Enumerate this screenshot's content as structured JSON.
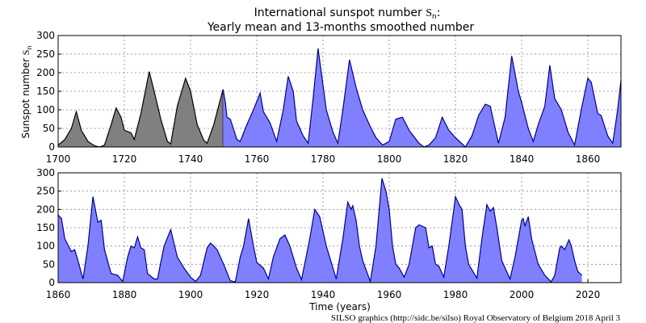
{
  "chart_data": {
    "type": "area",
    "title_line1": "International sunspot number",
    "title_symbol": "S",
    "title_subscript": "n",
    "title_suffix": ":",
    "title_line2": "Yearly mean and 13-months smoothed number",
    "ylabel": "Sunspot number",
    "ylabel_symbol": "S",
    "ylabel_subscript": "n",
    "xlabel": "Time (years)",
    "credit": "SILSO graphics (http://sidc.be/silso)  Royal Observatory of Belgium  2018 April 3",
    "grid": true,
    "colors": {
      "yearly_fill": "#808080",
      "smoothed_fill": "#8080ff",
      "smoothed_line": "#00008b",
      "yearly_line": "#000000"
    },
    "panels": [
      {
        "xlim": [
          1700,
          1870
        ],
        "ylim": [
          0,
          300
        ],
        "xticks": [
          "1700",
          "1720",
          "1740",
          "1760",
          "1780",
          "1800",
          "1820",
          "1840",
          "1860"
        ],
        "yticks": [
          "0",
          "50",
          "100",
          "150",
          "200",
          "250",
          "300"
        ],
        "series": [
          {
            "kind": "yearly",
            "points": [
              [
                1700,
                5
              ],
              [
                1702,
                20
              ],
              [
                1704,
                50
              ],
              [
                1705.5,
                95
              ],
              [
                1707,
                45
              ],
              [
                1709,
                15
              ],
              [
                1711,
                3
              ],
              [
                1712.5,
                0
              ],
              [
                1714,
                5
              ],
              [
                1716,
                60
              ],
              [
                1717.5,
                105
              ],
              [
                1719,
                80
              ],
              [
                1720,
                45
              ],
              [
                1722,
                38
              ],
              [
                1723,
                20
              ],
              [
                1725,
                90
              ],
              [
                1727.5,
                203
              ],
              [
                1729,
                150
              ],
              [
                1731,
                75
              ],
              [
                1733,
                15
              ],
              [
                1734,
                8
              ],
              [
                1736,
                110
              ],
              [
                1738.5,
                185
              ],
              [
                1740,
                150
              ],
              [
                1742,
                60
              ],
              [
                1744,
                18
              ],
              [
                1745,
                10
              ],
              [
                1747,
                60
              ],
              [
                1749.8,
                155
              ]
            ]
          },
          {
            "kind": "smoothed",
            "points": [
              [
                1749.8,
                155
              ],
              [
                1750.5,
                120
              ],
              [
                1751,
                80
              ],
              [
                1752,
                75
              ],
              [
                1754,
                20
              ],
              [
                1755,
                15
              ],
              [
                1757,
                60
              ],
              [
                1759,
                100
              ],
              [
                1761,
                145
              ],
              [
                1762,
                95
              ],
              [
                1764,
                65
              ],
              [
                1766,
                15
              ],
              [
                1768,
                100
              ],
              [
                1769.5,
                190
              ],
              [
                1771,
                150
              ],
              [
                1772,
                70
              ],
              [
                1774,
                30
              ],
              [
                1775.5,
                10
              ],
              [
                1777,
                130
              ],
              [
                1778.5,
                265
              ],
              [
                1779.5,
                200
              ],
              [
                1781,
                100
              ],
              [
                1783,
                40
              ],
              [
                1784.5,
                10
              ],
              [
                1786,
                100
              ],
              [
                1788,
                235
              ],
              [
                1790,
                160
              ],
              [
                1792,
                100
              ],
              [
                1794,
                60
              ],
              [
                1796,
                25
              ],
              [
                1798,
                5
              ],
              [
                1800,
                15
              ],
              [
                1802,
                75
              ],
              [
                1804,
                80
              ],
              [
                1806,
                45
              ],
              [
                1809,
                10
              ],
              [
                1810.5,
                0
              ],
              [
                1812,
                5
              ],
              [
                1814,
                25
              ],
              [
                1816,
                80
              ],
              [
                1818,
                45
              ],
              [
                1820,
                25
              ],
              [
                1823,
                0
              ],
              [
                1825,
                30
              ],
              [
                1827,
                85
              ],
              [
                1829,
                115
              ],
              [
                1830.5,
                110
              ],
              [
                1833,
                10
              ],
              [
                1835,
                80
              ],
              [
                1837,
                245
              ],
              [
                1839,
                150
              ],
              [
                1840,
                120
              ],
              [
                1842,
                50
              ],
              [
                1843.5,
                15
              ],
              [
                1845,
                60
              ],
              [
                1847,
                110
              ],
              [
                1848.5,
                220
              ],
              [
                1850,
                130
              ],
              [
                1852,
                100
              ],
              [
                1854,
                40
              ],
              [
                1856,
                5
              ],
              [
                1858,
                100
              ],
              [
                1860,
                185
              ],
              [
                1861,
                175
              ],
              [
                1863,
                90
              ],
              [
                1864,
                85
              ],
              [
                1866,
                30
              ],
              [
                1867.5,
                10
              ],
              [
                1869,
                100
              ],
              [
                1870,
                180
              ]
            ]
          }
        ]
      },
      {
        "xlim": [
          1860,
          2030
        ],
        "ylim": [
          0,
          300
        ],
        "xticks": [
          "1860",
          "1880",
          "1900",
          "1920",
          "1940",
          "1960",
          "1980",
          "2000",
          "2020"
        ],
        "yticks": [
          "0",
          "50",
          "100",
          "150",
          "200",
          "250",
          "300"
        ],
        "series": [
          {
            "kind": "smoothed",
            "points": [
              [
                1860,
                185
              ],
              [
                1861,
                175
              ],
              [
                1862,
                120
              ],
              [
                1864,
                85
              ],
              [
                1865,
                90
              ],
              [
                1866,
                60
              ],
              [
                1867.5,
                10
              ],
              [
                1869,
                100
              ],
              [
                1870.5,
                235
              ],
              [
                1872,
                165
              ],
              [
                1873,
                170
              ],
              [
                1874,
                90
              ],
              [
                1876,
                25
              ],
              [
                1878,
                20
              ],
              [
                1879.5,
                3
              ],
              [
                1881,
                70
              ],
              [
                1882,
                100
              ],
              [
                1883,
                95
              ],
              [
                1884,
                125
              ],
              [
                1885,
                95
              ],
              [
                1886,
                90
              ],
              [
                1887,
                25
              ],
              [
                1889,
                10
              ],
              [
                1890,
                10
              ],
              [
                1892,
                100
              ],
              [
                1894,
                145
              ],
              [
                1896,
                70
              ],
              [
                1898,
                40
              ],
              [
                1900,
                15
              ],
              [
                1901.5,
                3
              ],
              [
                1903,
                20
              ],
              [
                1905,
                95
              ],
              [
                1906,
                108
              ],
              [
                1907,
                100
              ],
              [
                1908,
                90
              ],
              [
                1910,
                50
              ],
              [
                1912,
                5
              ],
              [
                1913.5,
                2
              ],
              [
                1915,
                70
              ],
              [
                1916,
                100
              ],
              [
                1917.5,
                175
              ],
              [
                1919,
                100
              ],
              [
                1920,
                55
              ],
              [
                1922,
                40
              ],
              [
                1923.5,
                10
              ],
              [
                1925,
                70
              ],
              [
                1927,
                120
              ],
              [
                1928.5,
                130
              ],
              [
                1930,
                100
              ],
              [
                1932,
                40
              ],
              [
                1933.5,
                8
              ],
              [
                1936,
                120
              ],
              [
                1937.5,
                200
              ],
              [
                1939,
                180
              ],
              [
                1941,
                100
              ],
              [
                1942,
                70
              ],
              [
                1944,
                10
              ],
              [
                1946,
                120
              ],
              [
                1947.5,
                220
              ],
              [
                1948.5,
                200
              ],
              [
                1949,
                210
              ],
              [
                1950,
                170
              ],
              [
                1951,
                100
              ],
              [
                1952,
                60
              ],
              [
                1954.3,
                3
              ],
              [
                1956,
                100
              ],
              [
                1957.8,
                285
              ],
              [
                1959,
                250
              ],
              [
                1960,
                200
              ],
              [
                1961,
                100
              ],
              [
                1962,
                50
              ],
              [
                1963,
                40
              ],
              [
                1964.5,
                15
              ],
              [
                1966,
                50
              ],
              [
                1968,
                150
              ],
              [
                1969,
                158
              ],
              [
                1971,
                150
              ],
              [
                1972,
                95
              ],
              [
                1973,
                100
              ],
              [
                1974,
                50
              ],
              [
                1975,
                45
              ],
              [
                1976.5,
                15
              ],
              [
                1978,
                100
              ],
              [
                1979.5,
                200
              ],
              [
                1980,
                235
              ],
              [
                1981,
                215
              ],
              [
                1982,
                200
              ],
              [
                1983,
                100
              ],
              [
                1984,
                50
              ],
              [
                1986.5,
                12
              ],
              [
                1988,
                120
              ],
              [
                1989.5,
                213
              ],
              [
                1990.5,
                195
              ],
              [
                1991.5,
                205
              ],
              [
                1992.5,
                150
              ],
              [
                1994,
                60
              ],
              [
                1996.5,
                10
              ],
              [
                1998,
                70
              ],
              [
                2000,
                170
              ],
              [
                2000.5,
                175
              ],
              [
                2001,
                155
              ],
              [
                2002,
                180
              ],
              [
                2003,
                120
              ],
              [
                2005,
                50
              ],
              [
                2007,
                20
              ],
              [
                2008.9,
                2
              ],
              [
                2010,
                20
              ],
              [
                2011.5,
                95
              ],
              [
                2012,
                100
              ],
              [
                2013,
                90
              ],
              [
                2014.3,
                117
              ],
              [
                2015,
                100
              ],
              [
                2016,
                60
              ],
              [
                2017,
                30
              ],
              [
                2018.2,
                20
              ]
            ]
          }
        ]
      }
    ]
  }
}
